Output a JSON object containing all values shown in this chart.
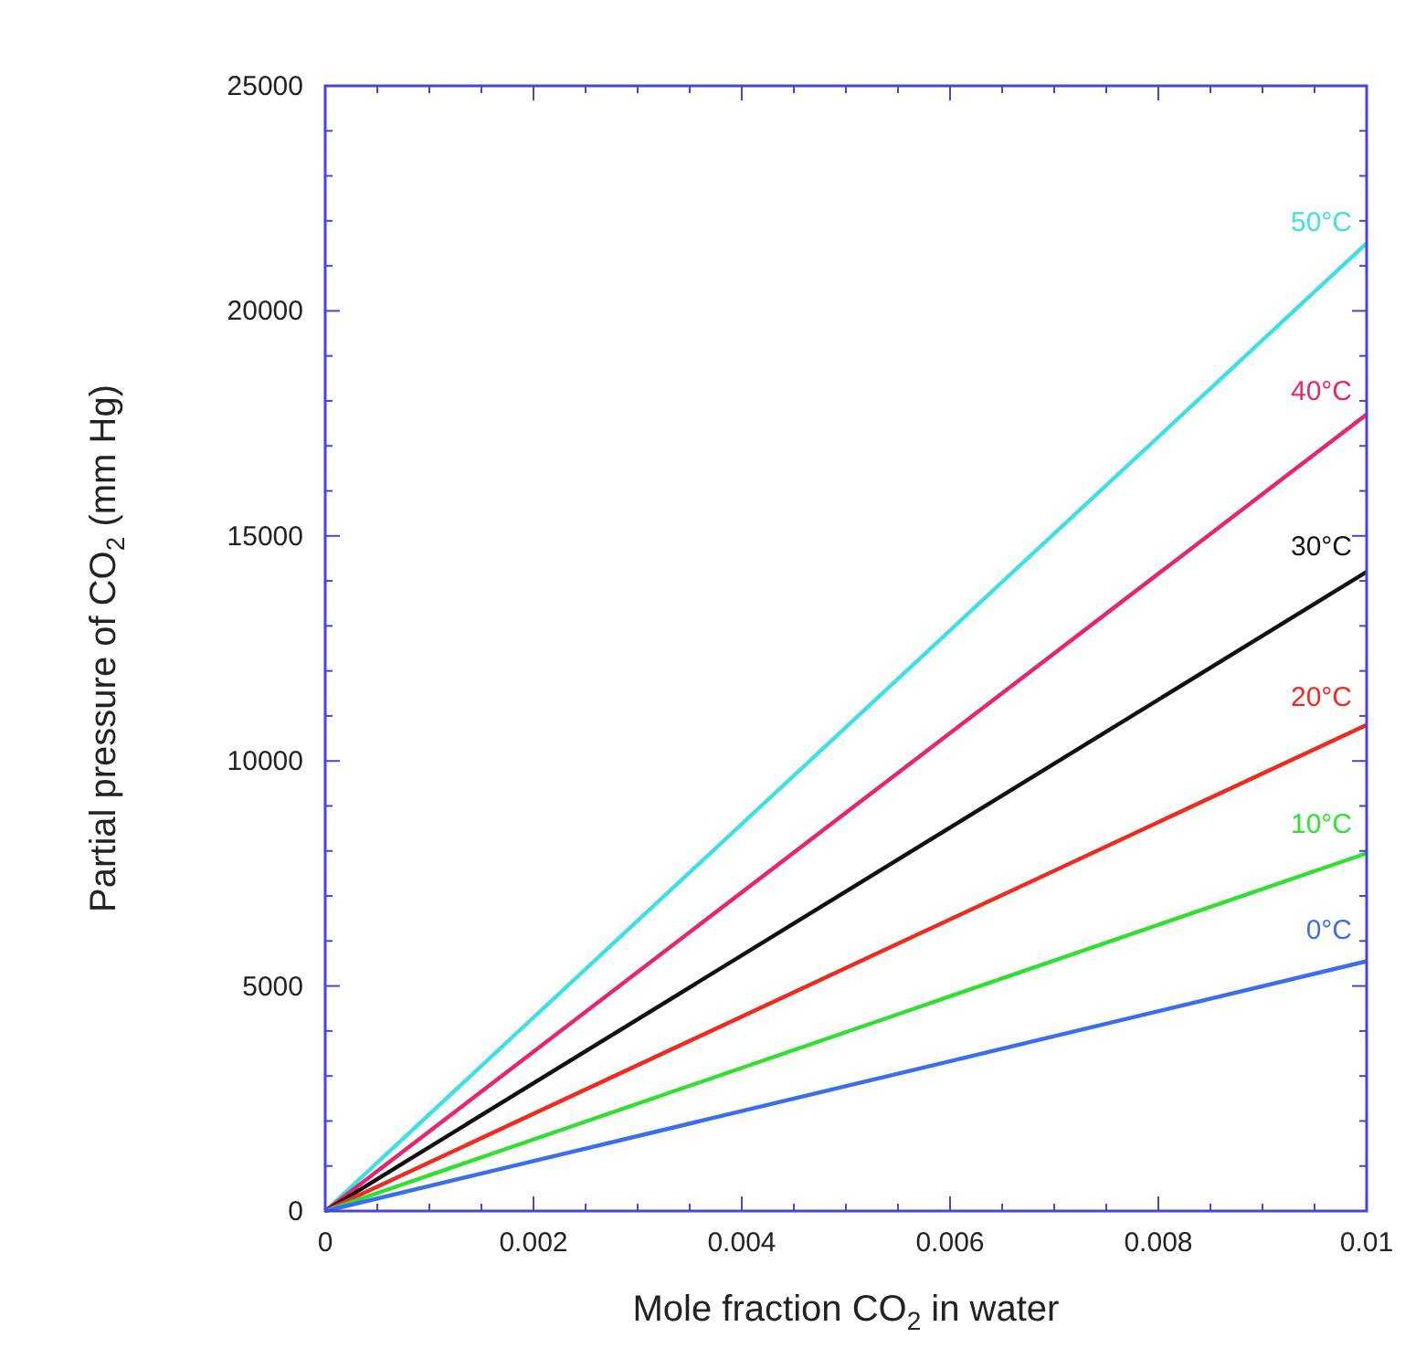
{
  "chart_data": {
    "type": "line",
    "xlabel": "Mole fraction CO$_{2}$ in water",
    "ylabel": "Partial pressure of CO$_{2}$ (mm Hg)",
    "x": [
      0,
      0.01
    ],
    "series": [
      {
        "name": "50°C",
        "color": "#3ee0e6",
        "values": [
          0,
          21500
        ]
      },
      {
        "name": "40°C",
        "color": "#e8246e",
        "values": [
          0,
          17700
        ]
      },
      {
        "name": "30°C",
        "color": "#111111",
        "values": [
          0,
          14200
        ]
      },
      {
        "name": "20°C",
        "color": "#f02a1e",
        "values": [
          0,
          10800
        ]
      },
      {
        "name": "10°C",
        "color": "#30e030",
        "values": [
          0,
          7950
        ]
      },
      {
        "name": "0°C",
        "color": "#3a6ef0",
        "values": [
          0,
          5550
        ]
      }
    ],
    "xlim": [
      0,
      0.01
    ],
    "xticks": [
      0,
      {
        "value": 0.0005,
        "label": null
      },
      0.002,
      {
        "value": 0.001,
        "label": null
      },
      {
        "value": 0.0015,
        "label": null
      },
      {
        "value": 0.0025,
        "label": null
      },
      {
        "value": 0.003,
        "label": null
      },
      {
        "value": 0.0035,
        "label": null
      },
      0.004,
      {
        "value": 0.0045,
        "label": null
      },
      {
        "value": 0.005,
        "label": null
      },
      {
        "value": 0.0055,
        "label": null
      },
      0.006,
      {
        "value": 0.0065,
        "label": null
      },
      {
        "value": 0.007,
        "label": null
      },
      {
        "value": 0.0075,
        "label": null
      },
      0.008,
      {
        "value": 0.0085,
        "label": null
      },
      {
        "value": 0.009,
        "label": null
      },
      {
        "value": 0.0095,
        "label": null
      },
      0.01
    ],
    "ylim": [
      0,
      25000
    ],
    "yticks": [
      0,
      {
        "value": 1000,
        "label": null
      },
      {
        "value": 2000,
        "label": null
      },
      {
        "value": 3000,
        "label": null
      },
      {
        "value": 4000,
        "label": null
      },
      5000,
      {
        "value": 6000,
        "label": null
      },
      {
        "value": 7000,
        "label": null
      },
      {
        "value": 8000,
        "label": null
      },
      {
        "value": 9000,
        "label": null
      },
      10000,
      {
        "value": 11000,
        "label": null
      },
      {
        "value": 12000,
        "label": null
      },
      {
        "value": 13000,
        "label": null
      },
      {
        "value": 14000,
        "label": null
      },
      15000,
      {
        "value": 16000,
        "label": null
      },
      {
        "value": 17000,
        "label": null
      },
      {
        "value": 18000,
        "label": null
      },
      {
        "value": 19000,
        "label": null
      },
      20000,
      {
        "value": 21000,
        "label": null
      },
      {
        "value": 22000,
        "label": null
      },
      {
        "value": 23000,
        "label": null
      },
      {
        "value": 24000,
        "label": null
      },
      25000
    ],
    "grid": false,
    "marker": "none",
    "line_style": "solid"
  }
}
